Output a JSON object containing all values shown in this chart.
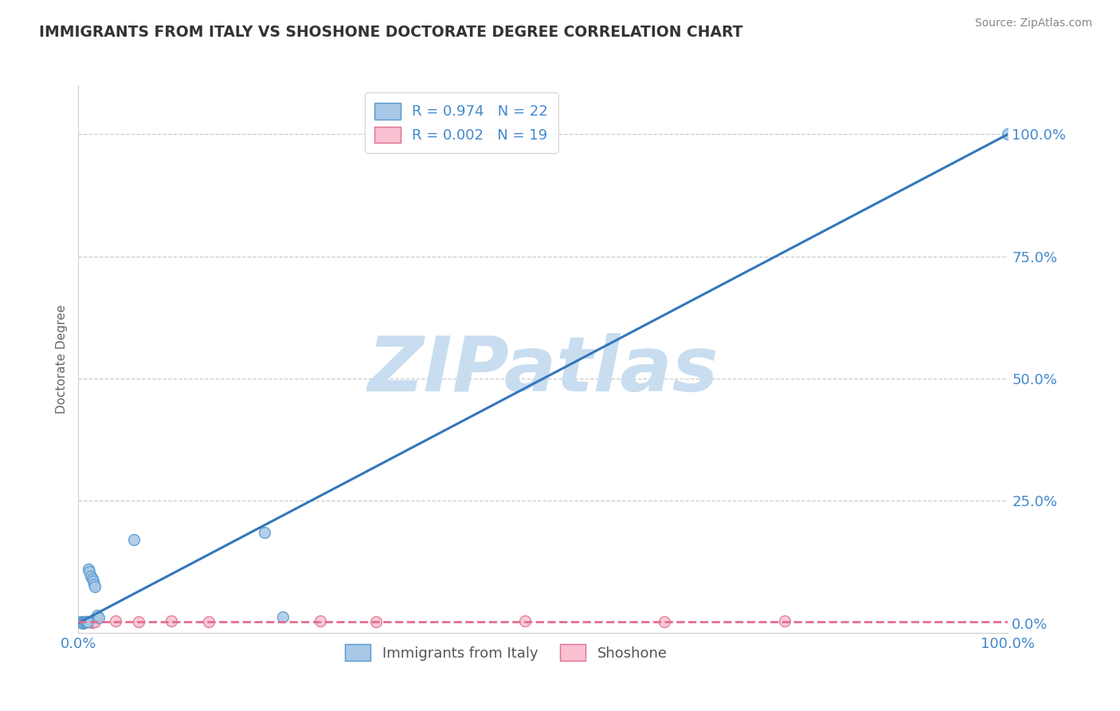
{
  "title": "IMMIGRANTS FROM ITALY VS SHOSHONE DOCTORATE DEGREE CORRELATION CHART",
  "source_text": "Source: ZipAtlas.com",
  "ylabel": "Doctorate Degree",
  "xlim": [
    0.0,
    1.0
  ],
  "ylim": [
    -0.02,
    1.1
  ],
  "blue_label": "Immigrants from Italy",
  "pink_label": "Shoshone",
  "blue_R": "0.974",
  "blue_N": "22",
  "pink_R": "0.002",
  "pink_N": "19",
  "blue_color": "#a8c8e8",
  "blue_edge_color": "#5599cc",
  "blue_line_color": "#3377bb",
  "pink_color": "#f8c0d0",
  "pink_edge_color": "#e07090",
  "pink_line_color": "#e07090",
  "blue_scatter_x": [
    0.002,
    0.003,
    0.004,
    0.005,
    0.006,
    0.007,
    0.008,
    0.009,
    0.01,
    0.011,
    0.012,
    0.013,
    0.015,
    0.016,
    0.017,
    0.018,
    0.02,
    0.022,
    0.06,
    0.2,
    0.22,
    1.0
  ],
  "blue_scatter_y": [
    0.002,
    0.001,
    0.001,
    0.0,
    0.001,
    0.002,
    0.003,
    0.002,
    0.003,
    0.11,
    0.105,
    0.095,
    0.09,
    0.085,
    0.08,
    0.075,
    0.015,
    0.01,
    0.17,
    0.185,
    0.012,
    1.0
  ],
  "pink_scatter_x": [
    0.004,
    0.005,
    0.006,
    0.007,
    0.008,
    0.01,
    0.012,
    0.014,
    0.016,
    0.018,
    0.04,
    0.065,
    0.1,
    0.14,
    0.26,
    0.32,
    0.48,
    0.63,
    0.76
  ],
  "pink_scatter_y": [
    0.003,
    0.002,
    0.001,
    0.003,
    0.002,
    0.003,
    0.002,
    0.001,
    0.003,
    0.003,
    0.005,
    0.003,
    0.004,
    0.003,
    0.004,
    0.003,
    0.004,
    0.003,
    0.004
  ],
  "watermark": "ZIPatlas",
  "watermark_color": "#c8ddf0",
  "ytick_labels": [
    "0.0%",
    "25.0%",
    "50.0%",
    "75.0%",
    "100.0%"
  ],
  "ytick_values": [
    0.0,
    0.25,
    0.5,
    0.75,
    1.0
  ],
  "xtick_labels": [
    "0.0%",
    "100.0%"
  ],
  "xtick_values": [
    0.0,
    1.0
  ],
  "background_color": "#ffffff",
  "title_color": "#333333",
  "grid_color": "#cccccc",
  "tick_color": "#4488cc",
  "legend_edge_color": "#cccccc",
  "spine_color": "#cccccc"
}
